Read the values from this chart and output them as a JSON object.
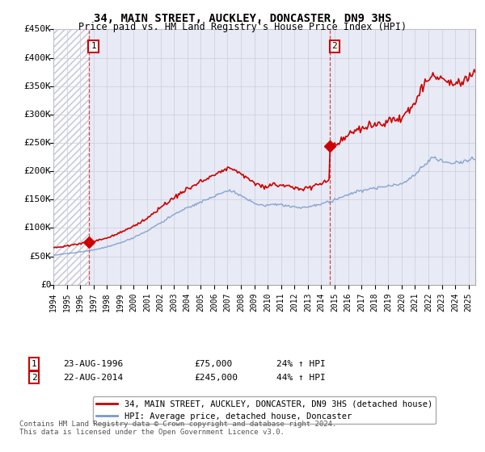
{
  "title": "34, MAIN STREET, AUCKLEY, DONCASTER, DN9 3HS",
  "subtitle": "Price paid vs. HM Land Registry's House Price Index (HPI)",
  "xlim": [
    1994.0,
    2025.5
  ],
  "ylim": [
    0,
    450000
  ],
  "yticks": [
    0,
    50000,
    100000,
    150000,
    200000,
    250000,
    300000,
    350000,
    400000,
    450000
  ],
  "ytick_labels": [
    "£0",
    "£50K",
    "£100K",
    "£150K",
    "£200K",
    "£250K",
    "£300K",
    "£350K",
    "£400K",
    "£450K"
  ],
  "xticks": [
    1994,
    1995,
    1996,
    1997,
    1998,
    1999,
    2000,
    2001,
    2002,
    2003,
    2004,
    2005,
    2006,
    2007,
    2008,
    2009,
    2010,
    2011,
    2012,
    2013,
    2014,
    2015,
    2016,
    2017,
    2018,
    2019,
    2020,
    2021,
    2022,
    2023,
    2024,
    2025
  ],
  "sale1_x": 1996.64,
  "sale1_y": 75000,
  "sale2_x": 2014.64,
  "sale2_y": 245000,
  "sale1_date": "23-AUG-1996",
  "sale1_price": "£75,000",
  "sale1_hpi": "24% ↑ HPI",
  "sale2_date": "22-AUG-2014",
  "sale2_price": "£245,000",
  "sale2_hpi": "44% ↑ HPI",
  "red_color": "#cc0000",
  "blue_color": "#7799cc",
  "legend_line1": "34, MAIN STREET, AUCKLEY, DONCASTER, DN9 3HS (detached house)",
  "legend_line2": "HPI: Average price, detached house, Doncaster",
  "footer1": "Contains HM Land Registry data © Crown copyright and database right 2024.",
  "footer2": "This data is licensed under the Open Government Licence v3.0.",
  "grid_color": "#ccccdd",
  "plot_bg": "#e8eaf5"
}
